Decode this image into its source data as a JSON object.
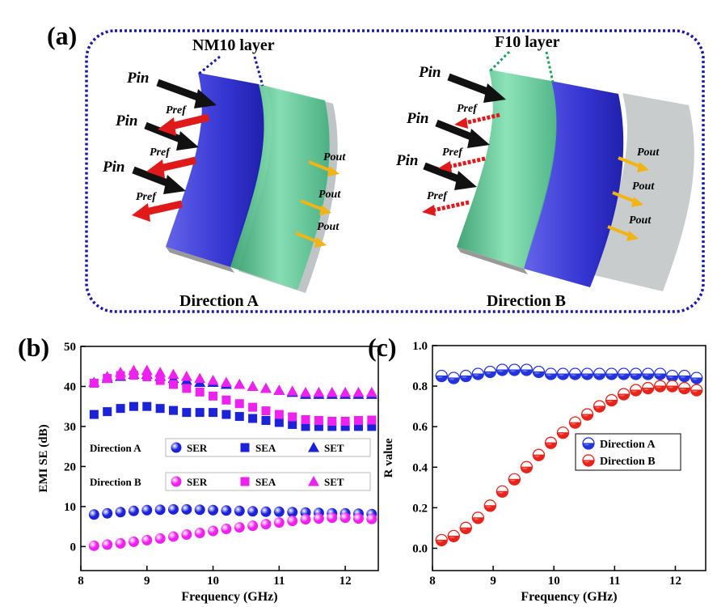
{
  "diagram": {
    "label": "(a)",
    "left": {
      "layer": "NM10 layer",
      "caption": "Direction A",
      "labels": [
        "Pin",
        "Pin",
        "Pin",
        "Pref",
        "Pref",
        "Pref",
        "Pout",
        "Pout",
        "Pout"
      ]
    },
    "right": {
      "layer": "F10 layer",
      "caption": "Direction B",
      "labels": [
        "Pin",
        "Pin",
        "Pin",
        "Pref",
        "Pref",
        "Pref",
        "Pout",
        "Pout",
        "Pout"
      ]
    }
  },
  "chart_data": [
    {
      "type": "scatter",
      "panel_label": "(b)",
      "x_label": "Frequency (GHz)",
      "y_label": "EMI SE (dB)",
      "xlim": [
        8,
        12.5
      ],
      "xticks": [
        8,
        9,
        10,
        11,
        12
      ],
      "ylim": [
        -6,
        50
      ],
      "yticks": [
        0,
        10,
        20,
        30,
        40,
        50
      ],
      "x": [
        8.2,
        8.4,
        8.6,
        8.8,
        9.0,
        9.2,
        9.4,
        9.6,
        9.8,
        10.0,
        10.2,
        10.4,
        10.6,
        10.8,
        11.0,
        11.2,
        11.4,
        11.6,
        11.8,
        12.0,
        12.2,
        12.4
      ],
      "series_groups": [
        {
          "name": "Direction A",
          "series": [
            {
              "name": "SER",
              "marker": "sphere",
              "color": "#1c22d8",
              "values": [
                8.0,
                8.3,
                8.6,
                8.9,
                9.1,
                9.2,
                9.3,
                9.3,
                9.2,
                9.1,
                9.0,
                8.9,
                8.8,
                8.7,
                8.7,
                8.6,
                8.5,
                8.4,
                8.3,
                8.3,
                8.2,
                8.1
              ]
            },
            {
              "name": "SEA",
              "marker": "square",
              "color": "#1c22d8",
              "values": [
                33,
                33.7,
                34.5,
                35,
                35,
                34.5,
                34,
                33.5,
                33.5,
                33.5,
                33,
                32.5,
                32,
                31.5,
                31,
                30.5,
                30,
                30,
                30,
                30,
                30,
                30
              ]
            },
            {
              "name": "SET",
              "marker": "triangle",
              "color": "#1c22d8",
              "values": [
                41,
                42,
                42.5,
                43,
                43,
                42.5,
                42,
                41.5,
                41,
                41,
                40.5,
                40.5,
                40,
                39.5,
                39,
                38.5,
                38,
                38,
                38,
                38,
                38,
                38
              ]
            }
          ]
        },
        {
          "name": "Direction B",
          "series": [
            {
              "name": "SER",
              "marker": "sphere",
              "color": "#ee22ee",
              "values": [
                0.2,
                0.5,
                0.8,
                1.2,
                1.6,
                2,
                2.5,
                3,
                3.4,
                3.9,
                4.4,
                4.8,
                5.2,
                5.6,
                6,
                6.4,
                6.8,
                7,
                7.2,
                7.2,
                7,
                6.9
              ]
            },
            {
              "name": "SEA",
              "marker": "square",
              "color": "#ee22ee",
              "values": [
                40.8,
                42,
                42.7,
                42.8,
                42.4,
                41.5,
                40.5,
                39.5,
                38.6,
                37.6,
                36.6,
                35.7,
                34.8,
                33.9,
                33,
                32.4,
                31.7,
                31.5,
                31.3,
                31.3,
                31.5,
                31.6
              ]
            },
            {
              "name": "SET",
              "marker": "triangle",
              "color": "#ee22ee",
              "values": [
                41,
                42.5,
                43.5,
                44,
                44,
                43.5,
                43,
                42.5,
                42,
                41.5,
                41,
                40.5,
                40,
                39.5,
                39,
                38.8,
                38.5,
                38.5,
                38.5,
                38.5,
                38.5,
                38.5
              ]
            }
          ]
        }
      ]
    },
    {
      "type": "scatter",
      "panel_label": "(c)",
      "x_label": "Frequency (GHz)",
      "y_label": "R value",
      "xlim": [
        8,
        12.5
      ],
      "xticks": [
        8,
        9,
        10,
        11,
        12
      ],
      "ylim": [
        -0.11,
        1.0
      ],
      "yticks": [
        {
          "value": 0,
          "label": "0.0"
        },
        {
          "value": 0.2,
          "label": "0.2"
        },
        {
          "value": 0.4,
          "label": "0.4"
        },
        {
          "value": 0.6,
          "label": "0.6"
        },
        {
          "value": 0.8,
          "label": "0.8"
        },
        {
          "value": 1.0,
          "label": "1.0"
        }
      ],
      "x": [
        8.15,
        8.35,
        8.55,
        8.75,
        8.95,
        9.15,
        9.35,
        9.55,
        9.75,
        9.95,
        10.15,
        10.35,
        10.55,
        10.75,
        10.95,
        11.15,
        11.35,
        11.55,
        11.75,
        11.95,
        12.15,
        12.35
      ],
      "series": [
        {
          "name": "Direction A",
          "marker": "half",
          "color": "#2233dd",
          "values": [
            0.85,
            0.84,
            0.85,
            0.86,
            0.87,
            0.88,
            0.88,
            0.88,
            0.87,
            0.86,
            0.86,
            0.86,
            0.86,
            0.86,
            0.86,
            0.86,
            0.86,
            0.86,
            0.86,
            0.85,
            0.85,
            0.84
          ]
        },
        {
          "name": "Direction B",
          "marker": "half",
          "color": "#e8231a",
          "values": [
            0.04,
            0.06,
            0.1,
            0.15,
            0.21,
            0.28,
            0.34,
            0.4,
            0.46,
            0.52,
            0.57,
            0.62,
            0.66,
            0.7,
            0.73,
            0.76,
            0.78,
            0.79,
            0.8,
            0.8,
            0.79,
            0.78
          ]
        }
      ]
    }
  ]
}
